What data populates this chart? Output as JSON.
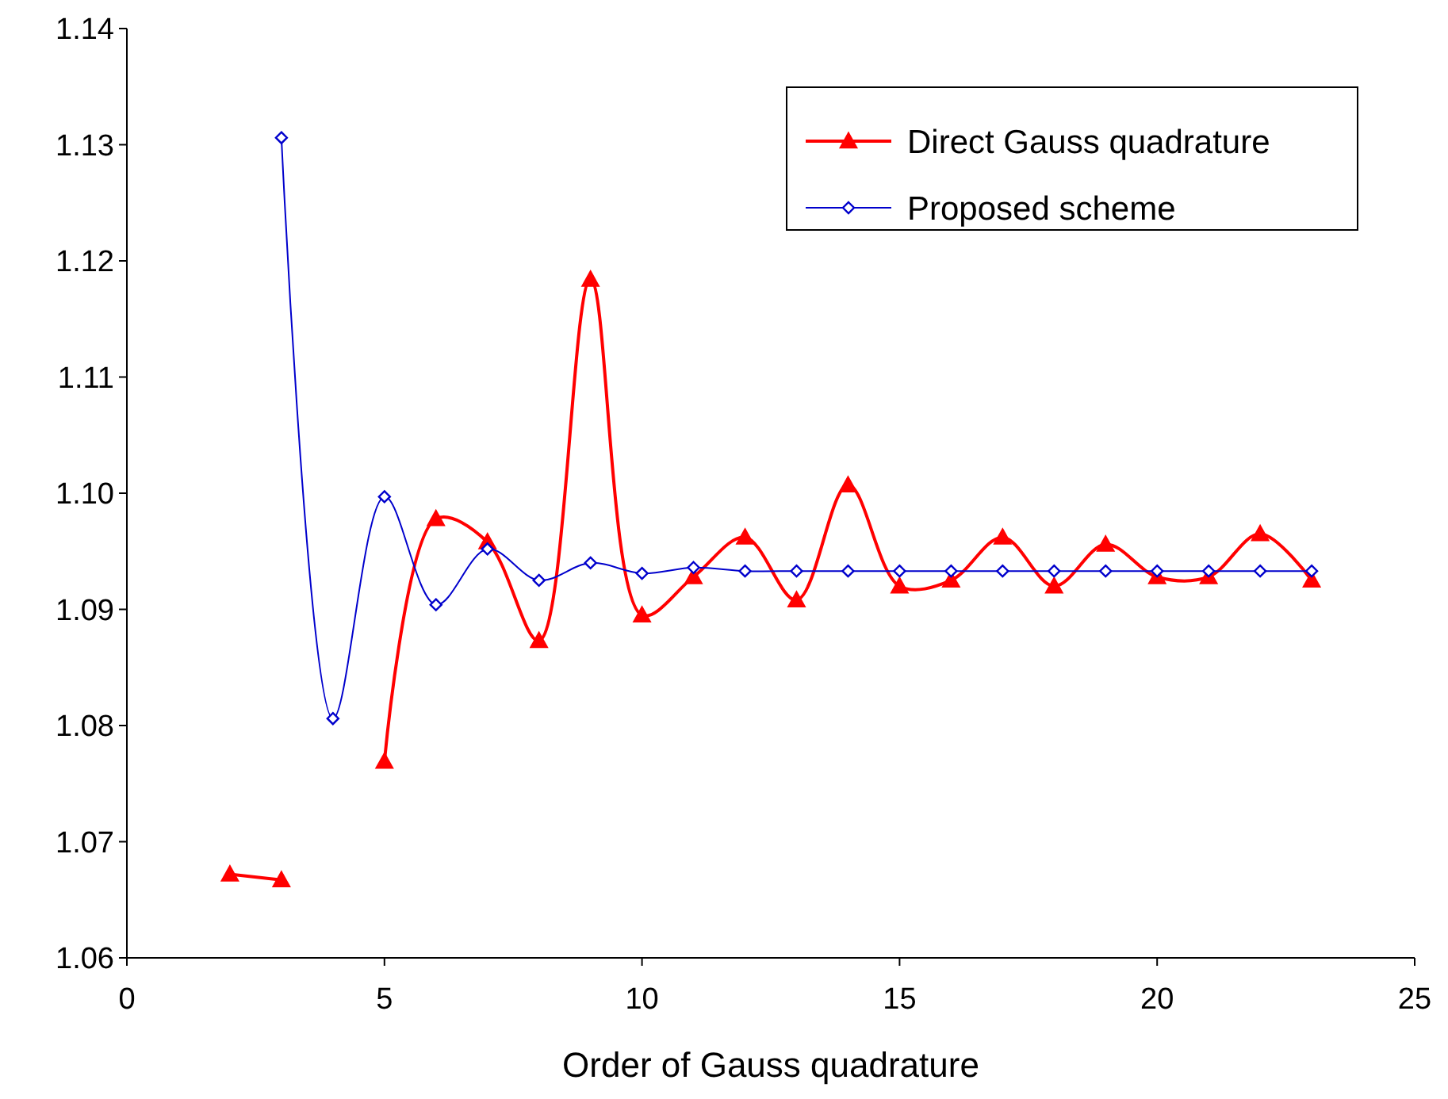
{
  "chart_data": {
    "type": "line",
    "xlabel": "Order of Gauss quadrature",
    "x": [
      2,
      3,
      4,
      5,
      6,
      7,
      8,
      9,
      10,
      11,
      12,
      13,
      14,
      15,
      16,
      17,
      18,
      19,
      20,
      21,
      22,
      23
    ],
    "series": [
      {
        "name": "Direct Gauss quadrature",
        "color": "#ff0000",
        "marker": "triangle",
        "values": [
          1.0672,
          1.0667,
          null,
          1.0769,
          1.0978,
          1.0958,
          1.0873,
          1.1184,
          1.0895,
          1.0928,
          1.0962,
          1.0908,
          1.1007,
          1.092,
          1.0925,
          1.0962,
          1.092,
          1.0956,
          1.0928,
          1.0928,
          1.0965,
          1.0925
        ]
      },
      {
        "name": "Proposed scheme",
        "color": "#0000cc",
        "marker": "diamond",
        "values": [
          null,
          1.1306,
          1.0806,
          1.0997,
          1.0904,
          1.0952,
          1.0925,
          1.094,
          1.0931,
          1.0936,
          1.0933,
          1.0933,
          1.0933,
          1.0933,
          1.0933,
          1.0933,
          1.0933,
          1.0933,
          1.0933,
          1.0933,
          1.0933,
          1.0933
        ]
      }
    ],
    "xlim": [
      0,
      25
    ],
    "xticks": [
      0,
      5,
      10,
      15,
      20,
      25
    ],
    "ylim": [
      1.06,
      1.14
    ],
    "yticks": [
      {
        "value": 1.06,
        "label": "1.06"
      },
      {
        "value": 1.07,
        "label": "1.07"
      },
      {
        "value": 1.08,
        "label": "1.08"
      },
      {
        "value": 1.09,
        "label": "1.09"
      },
      {
        "value": 1.1,
        "label": "1.10"
      },
      {
        "value": 1.11,
        "label": "1.11"
      },
      {
        "value": 1.12,
        "label": "1.12"
      },
      {
        "value": 1.13,
        "label": "1.13"
      },
      {
        "value": 1.14,
        "label": "1.14"
      }
    ],
    "grid": false,
    "legend": "top right"
  }
}
